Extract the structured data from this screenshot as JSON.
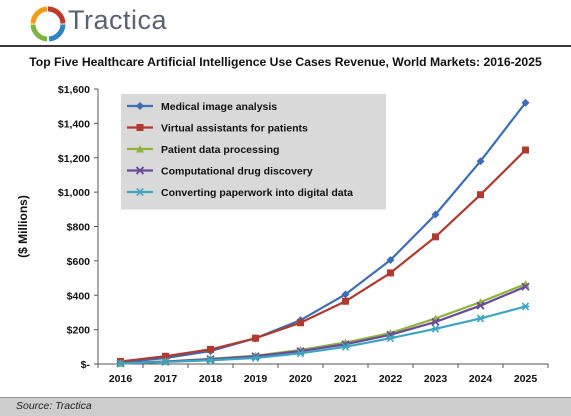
{
  "header": {
    "brand": "Tractica",
    "logo_colors": [
      "#c0392b",
      "#2e86c1",
      "#7cb342",
      "#f39c12"
    ]
  },
  "chart_data": {
    "type": "line",
    "title": "Top Five Healthcare Artificial Intelligence Use Cases Revenue, World Markets: 2016-2025",
    "xlabel": "",
    "ylabel": "($ Millions)",
    "ylim": [
      0,
      1600
    ],
    "y_ticks": [
      0,
      200,
      400,
      600,
      800,
      1000,
      1200,
      1400,
      1600
    ],
    "y_tick_labels": [
      "$-",
      "$200",
      "$400",
      "$600",
      "$800",
      "$1,000",
      "$1,200",
      "$1,400",
      "$1,600"
    ],
    "categories": [
      "2016",
      "2017",
      "2018",
      "2019",
      "2020",
      "2021",
      "2022",
      "2023",
      "2024",
      "2025"
    ],
    "legend_position": "top-left",
    "grid": false,
    "series": [
      {
        "name": "Medical image analysis",
        "color": "#3d6db5",
        "marker": "diamond",
        "values": [
          8,
          35,
          75,
          150,
          255,
          405,
          605,
          870,
          1180,
          1520
        ]
      },
      {
        "name": "Virtual assistants for patients",
        "color": "#b03a2e",
        "marker": "square",
        "values": [
          15,
          45,
          85,
          150,
          240,
          365,
          530,
          740,
          985,
          1245
        ]
      },
      {
        "name": "Patient data processing",
        "color": "#8db33a",
        "marker": "triangle",
        "values": [
          4,
          15,
          30,
          48,
          82,
          125,
          180,
          265,
          360,
          465
        ]
      },
      {
        "name": "Computational drug discovery",
        "color": "#6b4a9a",
        "marker": "x",
        "values": [
          4,
          14,
          28,
          45,
          75,
          115,
          170,
          245,
          340,
          450
        ]
      },
      {
        "name": "Converting paperwork into digital data",
        "color": "#3aa6c2",
        "marker": "asterisk",
        "values": [
          3,
          12,
          22,
          35,
          62,
          100,
          150,
          205,
          265,
          335
        ]
      }
    ]
  },
  "footer": {
    "source": "Source: Tractica"
  }
}
